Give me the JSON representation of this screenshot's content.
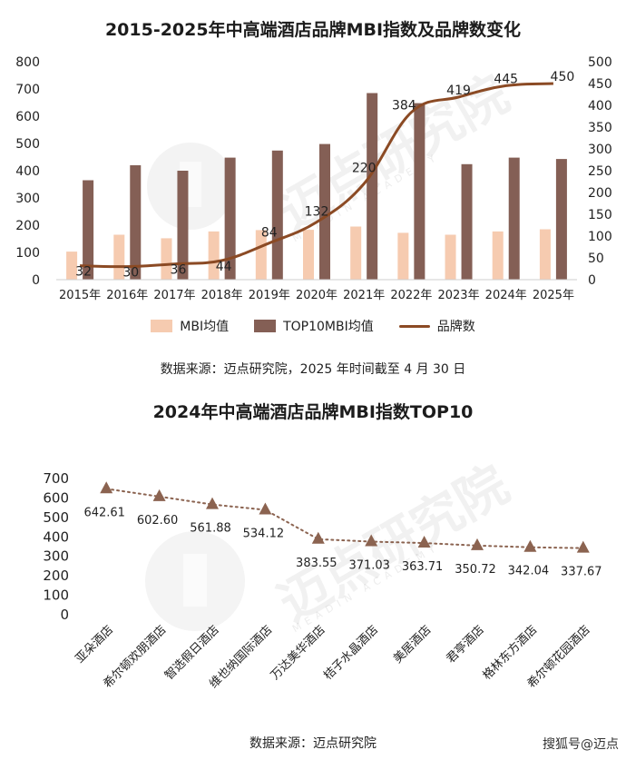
{
  "chart_data": [
    {
      "type": "bar",
      "title": "2015-2025年中高端酒店品牌MBI指数及品牌数变化",
      "categories": [
        "2015年",
        "2016年",
        "2017年",
        "2018年",
        "2019年",
        "2020年",
        "2021年",
        "2022年",
        "2023年",
        "2024年",
        "2025年"
      ],
      "series": [
        {
          "name": "MBI均值",
          "type": "bar",
          "color": "#f6cbb0",
          "axis": "left",
          "values": [
            103,
            165,
            152,
            177,
            182,
            183,
            195,
            172,
            165,
            177,
            185
          ]
        },
        {
          "name": "TOP10MBI均值",
          "type": "bar",
          "color": "#845f55",
          "axis": "left",
          "values": [
            365,
            420,
            400,
            448,
            474,
            498,
            685,
            648,
            424,
            448,
            443
          ]
        },
        {
          "name": "品牌数",
          "type": "line",
          "color": "#8b4a24",
          "axis": "right",
          "values": [
            32,
            30,
            36,
            44,
            84,
            132,
            220,
            384,
            419,
            445,
            450
          ]
        }
      ],
      "left_axis": {
        "ylim": [
          0,
          800
        ],
        "ticks": [
          "0",
          "100",
          "200",
          "300",
          "400",
          "500",
          "600",
          "700",
          "800"
        ]
      },
      "right_axis": {
        "ylim": [
          0,
          500
        ],
        "ticks": [
          "0",
          "50",
          "100",
          "150",
          "200",
          "250",
          "300",
          "350",
          "400",
          "450",
          "500"
        ]
      },
      "line_labels": [
        "32",
        "30",
        "36",
        "44",
        "84",
        "132",
        "220",
        "384",
        "419",
        "445",
        "450"
      ],
      "legend": [
        "MBI均值",
        "TOP10MBI均值",
        "品牌数"
      ],
      "legend_position": "bottom",
      "grid": false,
      "source": "数据来源：迈点研究院，2025 年时间截至 4 月 30 日"
    },
    {
      "type": "line",
      "title": "2024年中高端酒店品牌MBI指数TOP10",
      "categories": [
        "亚朵酒店",
        "希尔顿欢朋酒店",
        "智选假日酒店",
        "维也纳国际酒店",
        "万达美华酒店",
        "桔子水晶酒店",
        "美居酒店",
        "君亭酒店",
        "格林东方酒店",
        "希尔顿花园酒店"
      ],
      "series": [
        {
          "name": "MBI指数",
          "color": "#8b6350",
          "values": [
            642.61,
            602.6,
            561.88,
            534.12,
            383.55,
            371.03,
            363.71,
            350.72,
            342.04,
            337.67
          ]
        }
      ],
      "data_labels": [
        "642.61",
        "602.60",
        "561.88",
        "534.12",
        "383.55",
        "371.03",
        "363.71",
        "350.72",
        "342.04",
        "337.67"
      ],
      "ylim": [
        0,
        700
      ],
      "ticks": [
        "0",
        "100",
        "200",
        "300",
        "400",
        "500",
        "600",
        "700"
      ],
      "grid": false,
      "source": "数据来源：迈点研究院"
    }
  ],
  "watermark": {
    "text": "迈点研究院",
    "sub": "MEADIN ACADEMY"
  },
  "footer": {
    "brand": "搜狐号@迈点"
  }
}
